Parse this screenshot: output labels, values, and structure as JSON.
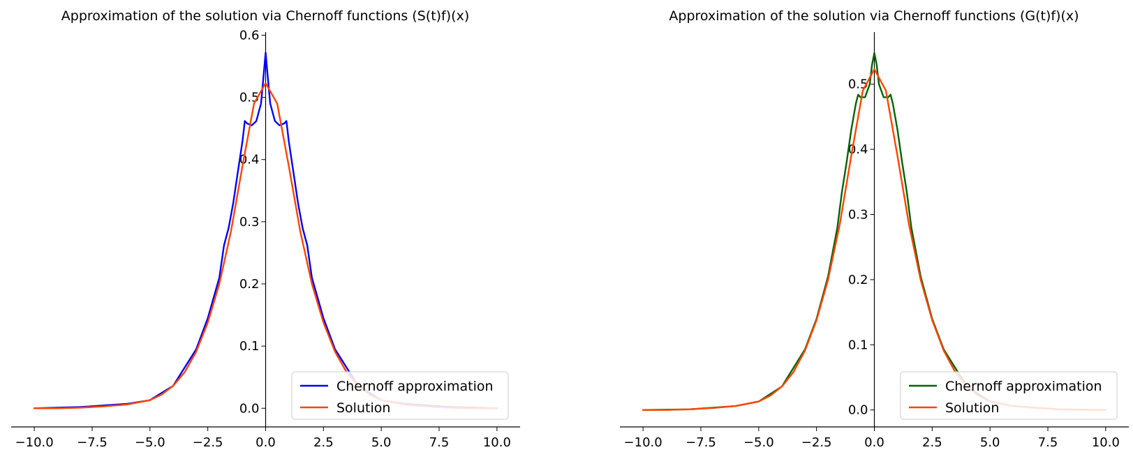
{
  "chart_data": [
    {
      "type": "line",
      "title": "Approximation of the solution via Chernoff functions (S(t)f)(x)",
      "xlabel": "",
      "ylabel": "",
      "xlim": [
        -11.0,
        11.0
      ],
      "ylim": [
        -0.03,
        0.605
      ],
      "xticks": [
        -10.0,
        -7.5,
        -5.0,
        -2.5,
        0.0,
        2.5,
        5.0,
        7.5,
        10.0
      ],
      "xtick_labels": [
        "−10.0",
        "−7.5",
        "−5.0",
        "−2.5",
        "0.0",
        "2.5",
        "5.0",
        "7.5",
        "10.0"
      ],
      "yticks": [
        0.0,
        0.1,
        0.2,
        0.3,
        0.4,
        0.5,
        0.6
      ],
      "ytick_labels": [
        "0.0",
        "0.1",
        "0.2",
        "0.3",
        "0.4",
        "0.5",
        "0.6"
      ],
      "spines": "x-axis at y=0 offset, y-axis at x=0",
      "grid": false,
      "legend_position": "lower-right",
      "series": [
        {
          "name": "Chernoff approximation",
          "color": "#0000ff",
          "x": [
            -10,
            -8,
            -6,
            -5,
            -4,
            -3,
            -2.5,
            -2,
            -1.8,
            -1.6,
            -1.4,
            -1.2,
            -1.0,
            -0.9,
            -0.8,
            -0.6,
            -0.4,
            -0.2,
            -0.1,
            0,
            0.1,
            0.2,
            0.4,
            0.6,
            0.8,
            0.9,
            1.0,
            1.2,
            1.4,
            1.6,
            1.8,
            2.0,
            2.5,
            3.0,
            4.0,
            5.0,
            6.0,
            8.0,
            10.0
          ],
          "y": [
            0.0,
            0.002,
            0.007,
            0.013,
            0.036,
            0.095,
            0.145,
            0.21,
            0.262,
            0.29,
            0.33,
            0.38,
            0.43,
            0.462,
            0.458,
            0.455,
            0.462,
            0.49,
            0.53,
            0.572,
            0.53,
            0.49,
            0.462,
            0.455,
            0.458,
            0.462,
            0.43,
            0.38,
            0.33,
            0.29,
            0.262,
            0.21,
            0.145,
            0.095,
            0.036,
            0.013,
            0.007,
            0.002,
            0.0
          ]
        },
        {
          "name": "Solution",
          "color": "#ff4500",
          "x": [
            -10,
            -9,
            -8,
            -7,
            -6,
            -5,
            -4.5,
            -4,
            -3.5,
            -3,
            -2.5,
            -2,
            -1.5,
            -1,
            -0.5,
            0,
            0.5,
            1,
            1.5,
            2,
            2.5,
            3,
            3.5,
            4,
            4.5,
            5,
            6,
            7,
            8,
            9,
            10
          ],
          "y": [
            0.0,
            0.0,
            0.001,
            0.003,
            0.006,
            0.013,
            0.022,
            0.036,
            0.058,
            0.091,
            0.138,
            0.2,
            0.284,
            0.39,
            0.49,
            0.523,
            0.49,
            0.39,
            0.284,
            0.2,
            0.138,
            0.091,
            0.058,
            0.036,
            0.022,
            0.013,
            0.006,
            0.003,
            0.001,
            0.0,
            0.0
          ]
        }
      ]
    },
    {
      "type": "line",
      "title": "Approximation of the solution via Chernoff functions (G(t)f)(x)",
      "xlabel": "",
      "ylabel": "",
      "xlim": [
        -11.0,
        11.0
      ],
      "ylim": [
        -0.026,
        0.58
      ],
      "xticks": [
        -10.0,
        -7.5,
        -5.0,
        -2.5,
        0.0,
        2.5,
        5.0,
        7.5,
        10.0
      ],
      "xtick_labels": [
        "−10.0",
        "−7.5",
        "−5.0",
        "−2.5",
        "0.0",
        "2.5",
        "5.0",
        "7.5",
        "10.0"
      ],
      "yticks": [
        0.0,
        0.1,
        0.2,
        0.3,
        0.4,
        0.5
      ],
      "ytick_labels": [
        "0.0",
        "0.1",
        "0.2",
        "0.3",
        "0.4",
        "0.5"
      ],
      "spines": "x-axis at y=0 offset, y-axis at x=0",
      "grid": false,
      "legend_position": "lower-right",
      "series": [
        {
          "name": "Chernoff approximation",
          "color": "#006400",
          "x": [
            -10,
            -8,
            -6,
            -5,
            -4,
            -3,
            -2.5,
            -2,
            -1.6,
            -1.4,
            -1.2,
            -1.0,
            -0.8,
            -0.7,
            -0.6,
            -0.4,
            -0.2,
            -0.1,
            0,
            0.1,
            0.2,
            0.4,
            0.6,
            0.7,
            0.8,
            1.0,
            1.2,
            1.4,
            1.6,
            2.0,
            2.5,
            3.0,
            4.0,
            5.0,
            6.0,
            8.0,
            10.0
          ],
          "y": [
            0.0,
            0.001,
            0.006,
            0.013,
            0.036,
            0.093,
            0.14,
            0.205,
            0.28,
            0.335,
            0.38,
            0.43,
            0.47,
            0.484,
            0.48,
            0.48,
            0.5,
            0.53,
            0.548,
            0.53,
            0.5,
            0.48,
            0.48,
            0.484,
            0.47,
            0.43,
            0.38,
            0.335,
            0.28,
            0.205,
            0.14,
            0.093,
            0.036,
            0.013,
            0.006,
            0.001,
            0.0
          ]
        },
        {
          "name": "Solution",
          "color": "#ff4500",
          "x": [
            -10,
            -9,
            -8,
            -7,
            -6,
            -5,
            -4.5,
            -4,
            -3.5,
            -3,
            -2.5,
            -2,
            -1.5,
            -1,
            -0.5,
            0,
            0.5,
            1,
            1.5,
            2,
            2.5,
            3,
            3.5,
            4,
            4.5,
            5,
            6,
            7,
            8,
            9,
            10
          ],
          "y": [
            0.0,
            0.0,
            0.001,
            0.003,
            0.006,
            0.013,
            0.022,
            0.036,
            0.058,
            0.091,
            0.138,
            0.2,
            0.284,
            0.39,
            0.49,
            0.523,
            0.49,
            0.39,
            0.284,
            0.2,
            0.138,
            0.091,
            0.058,
            0.036,
            0.022,
            0.013,
            0.006,
            0.003,
            0.001,
            0.0,
            0.0
          ]
        }
      ]
    }
  ]
}
